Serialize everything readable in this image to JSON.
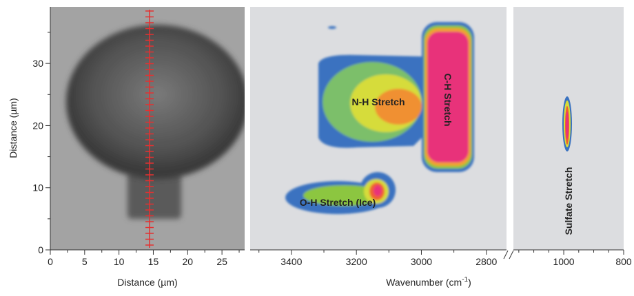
{
  "chart_data": [
    {
      "type": "image",
      "xlim": [
        0,
        28.3
      ],
      "xticks": [
        0,
        5,
        10,
        15,
        20,
        25
      ],
      "minor_xticks": [
        2.5,
        7.5,
        12.5,
        17.5,
        22.5,
        27.5
      ],
      "ylim": [
        0,
        39.1
      ],
      "yticks": [
        0,
        10,
        20,
        30
      ],
      "minor_yticks": [
        5,
        15,
        25,
        35
      ],
      "x_label": "Distance (µm)",
      "y_label": "Distance (µm)"
    },
    {
      "type": "map",
      "xlim": [
        3527,
        2738
      ],
      "xticks": [
        3400,
        3200,
        3000,
        2800
      ],
      "minor_xticks": [
        3500,
        3300,
        3100,
        2900
      ],
      "x_label": {
        "text": "Wavenumber (cm",
        "superscript": "-1",
        "suffix": ")"
      },
      "annotations": [
        "N-H Stretch",
        "C-H Stretch",
        "O-H Stretch (Ice)"
      ]
    },
    {
      "type": "map",
      "xlim": [
        1168,
        800
      ],
      "xticks": [
        1000,
        800
      ],
      "minor_xticks": [
        1150,
        1100,
        1050,
        950,
        900,
        850
      ],
      "annotations": [
        "Sulfate Stretch"
      ]
    }
  ]
}
